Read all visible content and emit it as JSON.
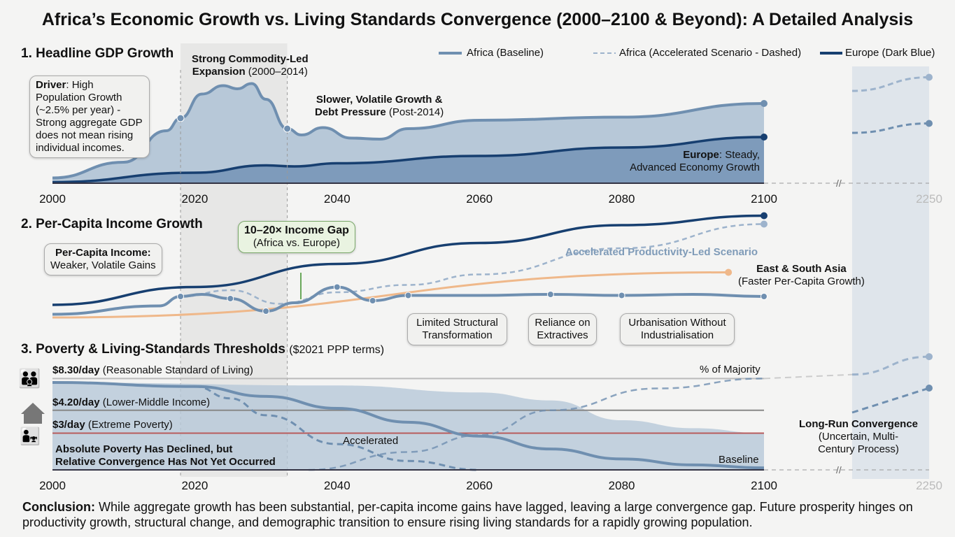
{
  "title": "Africa’s Economic Growth vs. Living Standards Convergence (2000–2100 & Beyond): A Detailed Analysis",
  "legend": {
    "africa": "Africa (Baseline)",
    "accel": "Africa (Accelerated Scenario - Dashed)",
    "europe": "Europe (Dark Blue)"
  },
  "colors": {
    "africa": "#6f8fb0",
    "europe": "#173f70",
    "accel": "#9db3cc",
    "asia": "#efb88a",
    "poverty": "#b85c5c",
    "fill_light": "#b7c8d8",
    "fill_dark": "#7e9bbb"
  },
  "p1": {
    "title": "1. Headline GDP Growth",
    "driver_b": "Driver",
    "driver": ": High Population Growth (~2.5% per year) - Strong aggregate GDP does not mean rising individual incomes.",
    "boom_b": "Strong Commodity-Led",
    "boom_b2": "Expansion",
    "boom": " (2000–2014)",
    "slow_b": "Slower, Volatile Growth &",
    "slow_b2": "Debt Pressure",
    "slow": " (Post-2014)",
    "eu_b": "Europe",
    "eu": ": Steady,",
    "eu2": "Advanced Economy Growth"
  },
  "p2": {
    "title": "2. Per-Capita Income Growth",
    "pci_b": "Per-Capita Income:",
    "pci": "Weaker, Volatile Gains",
    "gap_b": "10–20× Income Gap",
    "gap": "(Africa vs. Europe)",
    "accel": "Accelerated Productivity-Led Scenario",
    "asia_b": "East & South Asia",
    "asia": "(Faster Per-Capita Growth)",
    "c1": "Limited Structural Transformation",
    "c2": "Reliance on Extractives",
    "c3": "Urbanisation Without Industrialisation"
  },
  "p3": {
    "title": "3. Poverty & Living-Standards Thresholds",
    "unit": "($2021 PPP terms)",
    "t1_b": "$8.30/day",
    "t1": " (Reasonable Standard of Living)",
    "t2_b": "$4.20/day",
    "t2": " (Lower-Middle Income)",
    "t3_b": "$3/day",
    "t3": " (Extreme Poverty)",
    "note1": "Absolute Poverty Has Declined, but",
    "note2": "Relative Convergence Has Not Yet Occurred",
    "accel": "Accelerated",
    "baseline": "Baseline",
    "majority": "% of Majority",
    "lr_b": "Long-Run Convergence",
    "lr": "(Uncertain, Multi-Century Process)"
  },
  "conclusion_b": "Conclusion:",
  "conclusion": " While aggregate growth has been substantial, per-capita income gains have lagged, leaving a large convergence gap. Future prosperity hinges on productivity growth, structural change, and demographic transition to ensure rising living standards for a rapidly growing population.",
  "chart_data": [
    {
      "type": "area",
      "title": "1. Headline GDP Growth",
      "ticks": [
        2000,
        2020,
        2040,
        2060,
        2080,
        2100,
        2250
      ],
      "ylim": [
        0,
        110
      ],
      "series": [
        {
          "name": "Africa (Baseline)",
          "x": [
            2000,
            2010,
            2016,
            2018,
            2021,
            2024,
            2026,
            2028,
            2030,
            2033,
            2035,
            2038,
            2042,
            2046,
            2050,
            2060,
            2080,
            2100
          ],
          "y": [
            5,
            20,
            50,
            62,
            85,
            93,
            90,
            95,
            80,
            52,
            46,
            53,
            43,
            42,
            52,
            60,
            63,
            76
          ]
        },
        {
          "name": "Africa (Accelerated Scenario - Dashed)",
          "x": [
            2130,
            2250
          ],
          "y": [
            88,
            101
          ]
        },
        {
          "name": "Europe (Dark Blue)",
          "x": [
            2000,
            2020,
            2030,
            2034,
            2040,
            2060,
            2080,
            2100,
            2130,
            2250
          ],
          "y": [
            1,
            10,
            17,
            16,
            19,
            26,
            34,
            44,
            48,
            57
          ]
        }
      ]
    },
    {
      "type": "line",
      "title": "2. Per-Capita Income Growth",
      "ylim": [
        0,
        110
      ],
      "series": [
        {
          "name": "Europe",
          "x": [
            2000,
            2020,
            2040,
            2060,
            2080,
            2100
          ],
          "y": [
            16,
            33,
            55,
            75,
            92,
            101
          ]
        },
        {
          "name": "Africa (Baseline)",
          "x": [
            2000,
            2015,
            2018,
            2021,
            2025,
            2030,
            2034,
            2040,
            2045,
            2050,
            2060,
            2070,
            2080,
            2090,
            2100
          ],
          "y": [
            7,
            15,
            24,
            26,
            22,
            10,
            18,
            33,
            20,
            25,
            25,
            26,
            25,
            26,
            24
          ]
        },
        {
          "name": "Accelerated Productivity-Led Scenario",
          "x": [
            2018,
            2025,
            2032,
            2040,
            2050,
            2060,
            2080,
            2100
          ],
          "y": [
            24,
            30,
            17,
            28,
            35,
            45,
            70,
            93
          ]
        },
        {
          "name": "East & South Asia",
          "x": [
            2000,
            2095
          ],
          "y": [
            4,
            47
          ]
        }
      ]
    },
    {
      "type": "area",
      "title": "3. Poverty & Living-Standards Thresholds",
      "ylim": [
        0,
        100
      ],
      "thresholds": [
        {
          "label": "$8.30/day",
          "y": 92
        },
        {
          "label": "$4.20/day",
          "y": 60
        },
        {
          "label": "$3/day",
          "y": 37
        }
      ],
      "series": [
        {
          "name": "Baseline",
          "x": [
            2000,
            2020,
            2030,
            2040,
            2050,
            2060,
            2070,
            2080,
            2090,
            2100
          ],
          "y": [
            88,
            84,
            74,
            62,
            48,
            34,
            21,
            11,
            5,
            2
          ]
        },
        {
          "name": "Accelerated",
          "x": [
            2020,
            2025,
            2030,
            2040,
            2050,
            2060
          ],
          "y": [
            84,
            72,
            55,
            26,
            9,
            0
          ]
        },
        {
          "name": "% of Majority",
          "x": [
            2036,
            2050,
            2060,
            2070,
            2085,
            2100,
            2130,
            2250
          ],
          "y": [
            0,
            18,
            35,
            60,
            82,
            92,
            96,
            114
          ]
        },
        {
          "name": "fill",
          "x": [
            2000,
            2040,
            2060,
            2070,
            2080,
            2090,
            2100
          ],
          "y": [
            88,
            85,
            78,
            70,
            50,
            42,
            37
          ]
        }
      ]
    }
  ]
}
